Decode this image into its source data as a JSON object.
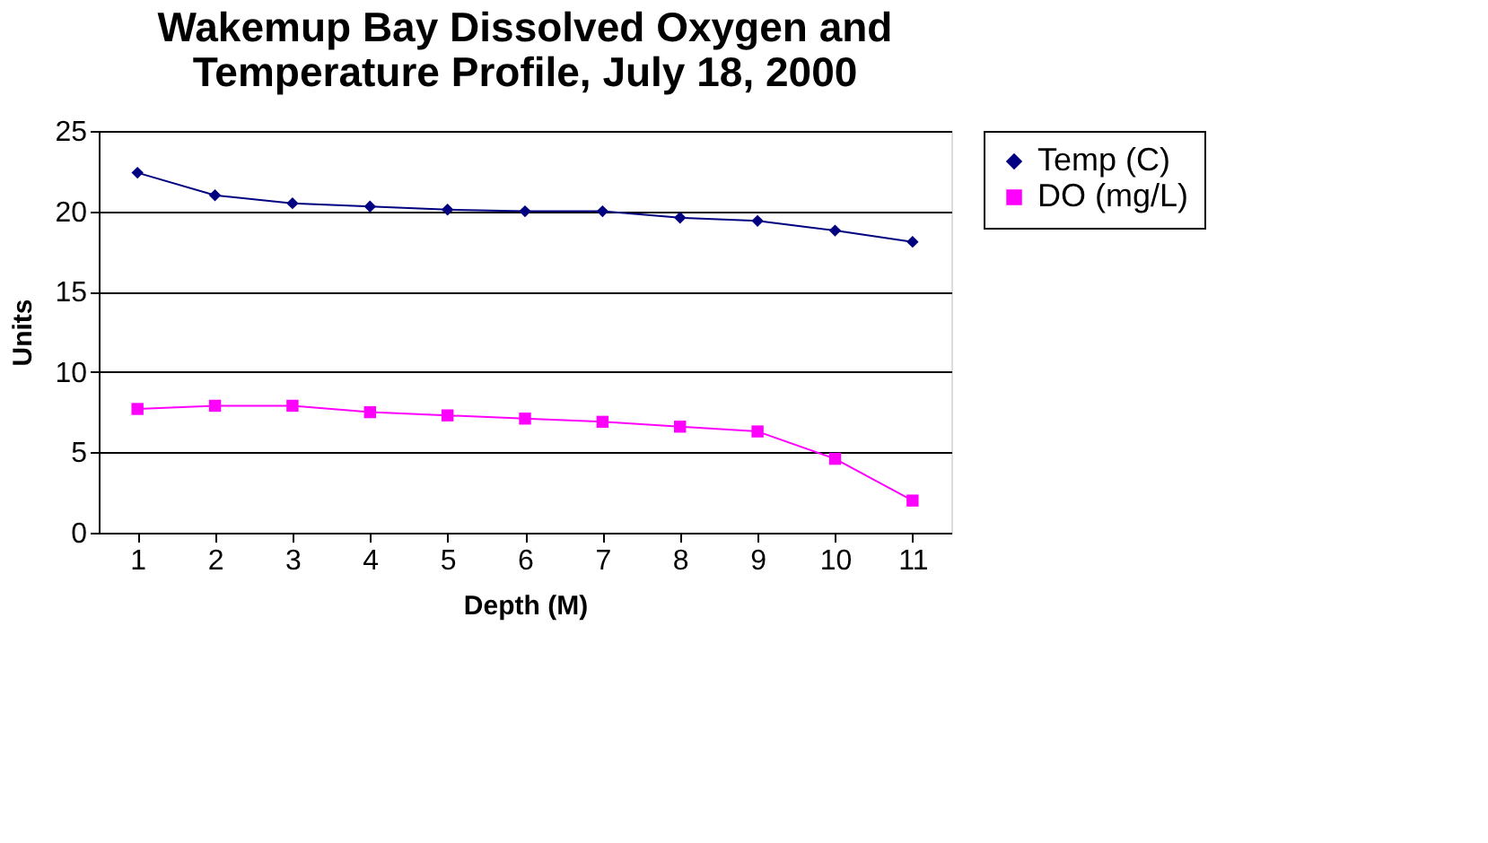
{
  "chart_data": {
    "type": "line",
    "title": "Wakemup Bay Dissolved Oxygen and Temperature Profile, July 18, 2000",
    "xlabel": "Depth (M)",
    "ylabel": "Units",
    "categories": [
      "1",
      "2",
      "3",
      "4",
      "5",
      "6",
      "7",
      "8",
      "9",
      "10",
      "11"
    ],
    "series": [
      {
        "name": "Temp (C)",
        "color": "#000080",
        "marker": "diamond",
        "values": [
          22.4,
          21.0,
          20.5,
          20.3,
          20.1,
          20.0,
          20.0,
          19.6,
          19.4,
          18.8,
          18.1
        ]
      },
      {
        "name": "DO (mg/L)",
        "color": "#ff00ff",
        "marker": "square",
        "values": [
          7.7,
          7.9,
          7.9,
          7.5,
          7.3,
          7.1,
          6.9,
          6.6,
          6.3,
          4.6,
          2.0
        ]
      }
    ],
    "ylim": [
      0,
      25
    ],
    "yticks": [
      0,
      5,
      10,
      15,
      20,
      25
    ],
    "grid": "y",
    "legend": "right",
    "line_style": "solid"
  }
}
